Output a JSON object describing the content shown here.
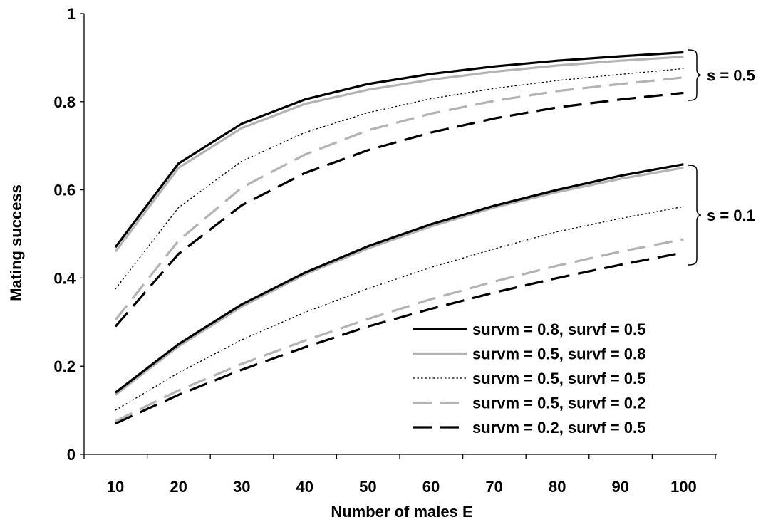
{
  "chart_data": {
    "type": "line",
    "xlabel": "Number of males E",
    "ylabel": "Mating success",
    "x": [
      10,
      20,
      30,
      40,
      50,
      60,
      70,
      80,
      90,
      100
    ],
    "x_ticks": [
      "10",
      "20",
      "30",
      "40",
      "50",
      "60",
      "70",
      "80",
      "90",
      "100"
    ],
    "ylim": [
      0,
      1
    ],
    "y_ticks": [
      "0",
      "0.2",
      "0.4",
      "0.6",
      "0.8",
      "1"
    ],
    "grid": false,
    "legend_placement": "bottom-right",
    "legend": [
      {
        "label": "survm = 0.8, survf = 0.5",
        "color": "#000000",
        "style": "solid-thick"
      },
      {
        "label": "survm = 0.5, survf = 0.8",
        "color": "#b3b3b3",
        "style": "solid-thick"
      },
      {
        "label": "survm = 0.5, survf = 0.5",
        "color": "#000000",
        "style": "dotted-thin"
      },
      {
        "label": "survm = 0.5, survf = 0.2",
        "color": "#b3b3b3",
        "style": "dashed-thick"
      },
      {
        "label": "survm = 0.2, survf = 0.5",
        "color": "#000000",
        "style": "dashed-thick"
      }
    ],
    "groups": [
      {
        "label": "s = 0.5",
        "series": [
          {
            "name": "survm = 0.8, survf = 0.5",
            "values": [
              0.47,
              0.66,
              0.75,
              0.805,
              0.84,
              0.863,
              0.88,
              0.893,
              0.903,
              0.912
            ]
          },
          {
            "name": "survm = 0.5, survf = 0.8",
            "values": [
              0.46,
              0.65,
              0.74,
              0.795,
              0.827,
              0.85,
              0.868,
              0.882,
              0.893,
              0.902
            ]
          },
          {
            "name": "survm = 0.5, survf = 0.5",
            "values": [
              0.375,
              0.56,
              0.665,
              0.73,
              0.775,
              0.807,
              0.83,
              0.848,
              0.862,
              0.875
            ]
          },
          {
            "name": "survm = 0.5, survf = 0.2",
            "values": [
              0.305,
              0.485,
              0.605,
              0.68,
              0.735,
              0.773,
              0.802,
              0.824,
              0.84,
              0.855
            ]
          },
          {
            "name": "survm = 0.2, survf = 0.5",
            "values": [
              0.29,
              0.455,
              0.565,
              0.638,
              0.69,
              0.73,
              0.762,
              0.787,
              0.805,
              0.82
            ]
          }
        ]
      },
      {
        "label": "s = 0.1",
        "series": [
          {
            "name": "survm = 0.8, survf = 0.5",
            "values": [
              0.14,
              0.25,
              0.34,
              0.412,
              0.472,
              0.522,
              0.564,
              0.6,
              0.632,
              0.658
            ]
          },
          {
            "name": "survm = 0.5, survf = 0.8",
            "values": [
              0.135,
              0.245,
              0.335,
              0.408,
              0.467,
              0.517,
              0.56,
              0.595,
              0.625,
              0.65
            ]
          },
          {
            "name": "survm = 0.5, survf = 0.5",
            "values": [
              0.1,
              0.185,
              0.26,
              0.322,
              0.376,
              0.424,
              0.466,
              0.505,
              0.535,
              0.562
            ]
          },
          {
            "name": "survm = 0.5, survf = 0.2",
            "values": [
              0.075,
              0.145,
              0.205,
              0.258,
              0.307,
              0.352,
              0.392,
              0.428,
              0.46,
              0.488
            ]
          },
          {
            "name": "survm = 0.2, survf = 0.5",
            "values": [
              0.07,
              0.135,
              0.192,
              0.243,
              0.29,
              0.33,
              0.367,
              0.4,
              0.43,
              0.458
            ]
          }
        ]
      }
    ]
  }
}
